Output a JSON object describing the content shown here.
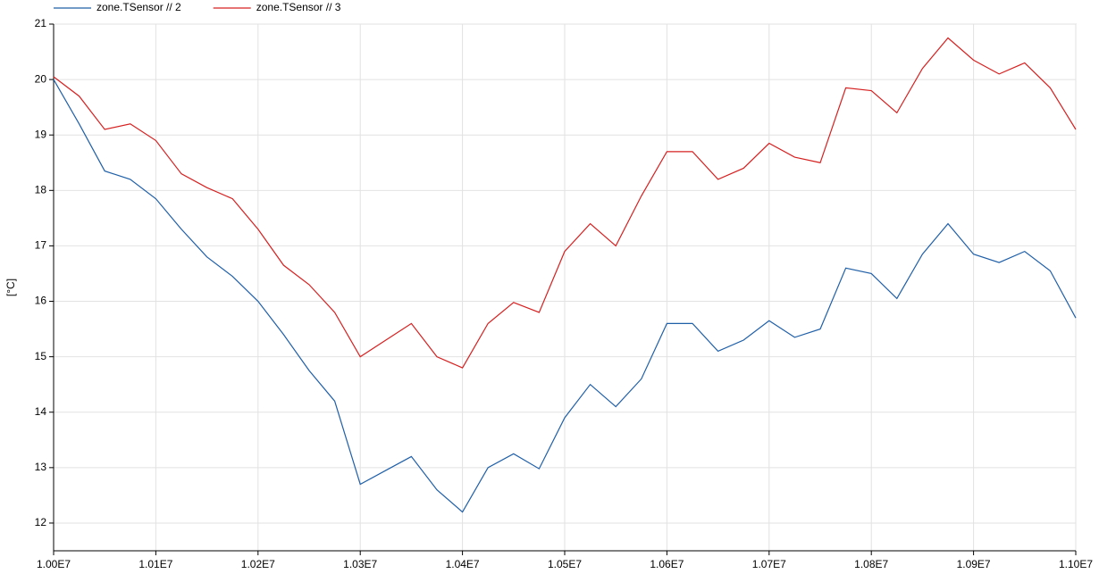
{
  "chart_data": {
    "type": "line",
    "ylabel": "[°C]",
    "x": [
      10000000,
      10025000,
      10050000,
      10075000,
      10100000,
      10125000,
      10150000,
      10175000,
      10200000,
      10225000,
      10250000,
      10275000,
      10300000,
      10325000,
      10350000,
      10375000,
      10400000,
      10425000,
      10450000,
      10475000,
      10500000,
      10525000,
      10550000,
      10575000,
      10600000,
      10625000,
      10650000,
      10675000,
      10700000,
      10725000,
      10750000,
      10775000,
      10800000,
      10825000,
      10850000,
      10875000,
      10900000,
      10925000,
      10950000,
      10975000,
      11000000
    ],
    "series": [
      {
        "name": "zone.TSensor // 2",
        "color": "#1f5fa8",
        "values": [
          20.0,
          19.2,
          18.35,
          18.2,
          17.85,
          17.3,
          16.8,
          16.45,
          16.0,
          15.4,
          14.75,
          14.2,
          12.7,
          12.95,
          13.2,
          12.6,
          12.2,
          13.0,
          13.25,
          12.98,
          13.9,
          14.5,
          14.1,
          14.6,
          15.6,
          15.6,
          15.1,
          15.3,
          15.65,
          15.35,
          15.5,
          16.6,
          16.5,
          16.05,
          16.85,
          17.4,
          16.85,
          16.7,
          16.9,
          16.55,
          15.7
        ]
      },
      {
        "name": "zone.TSensor // 3",
        "color": "#d62020",
        "values": [
          20.05,
          19.7,
          19.1,
          19.2,
          18.9,
          18.3,
          18.05,
          17.85,
          17.3,
          16.65,
          16.3,
          15.8,
          15.0,
          15.3,
          15.6,
          15.0,
          14.8,
          15.6,
          15.98,
          15.8,
          16.9,
          17.4,
          17.0,
          17.9,
          18.7,
          18.7,
          18.2,
          18.4,
          18.85,
          18.6,
          18.5,
          19.85,
          19.8,
          19.4,
          20.2,
          20.75,
          20.35,
          20.1,
          20.3,
          19.85,
          19.1
        ]
      }
    ],
    "xlim": [
      10000000,
      11000000
    ],
    "xticks": [
      {
        "value": 10000000,
        "label": "1.00E7"
      },
      {
        "value": 10100000,
        "label": "1.01E7"
      },
      {
        "value": 10200000,
        "label": "1.02E7"
      },
      {
        "value": 10300000,
        "label": "1.03E7"
      },
      {
        "value": 10400000,
        "label": "1.04E7"
      },
      {
        "value": 10500000,
        "label": "1.05E7"
      },
      {
        "value": 10600000,
        "label": "1.06E7"
      },
      {
        "value": 10700000,
        "label": "1.07E7"
      },
      {
        "value": 10800000,
        "label": "1.08E7"
      },
      {
        "value": 10900000,
        "label": "1.09E7"
      },
      {
        "value": 11000000,
        "label": "1.10E7"
      }
    ],
    "ylim": [
      11.5,
      21
    ],
    "yticks": [
      12,
      13,
      14,
      15,
      16,
      17,
      18,
      19,
      20,
      21
    ],
    "grid": true
  }
}
